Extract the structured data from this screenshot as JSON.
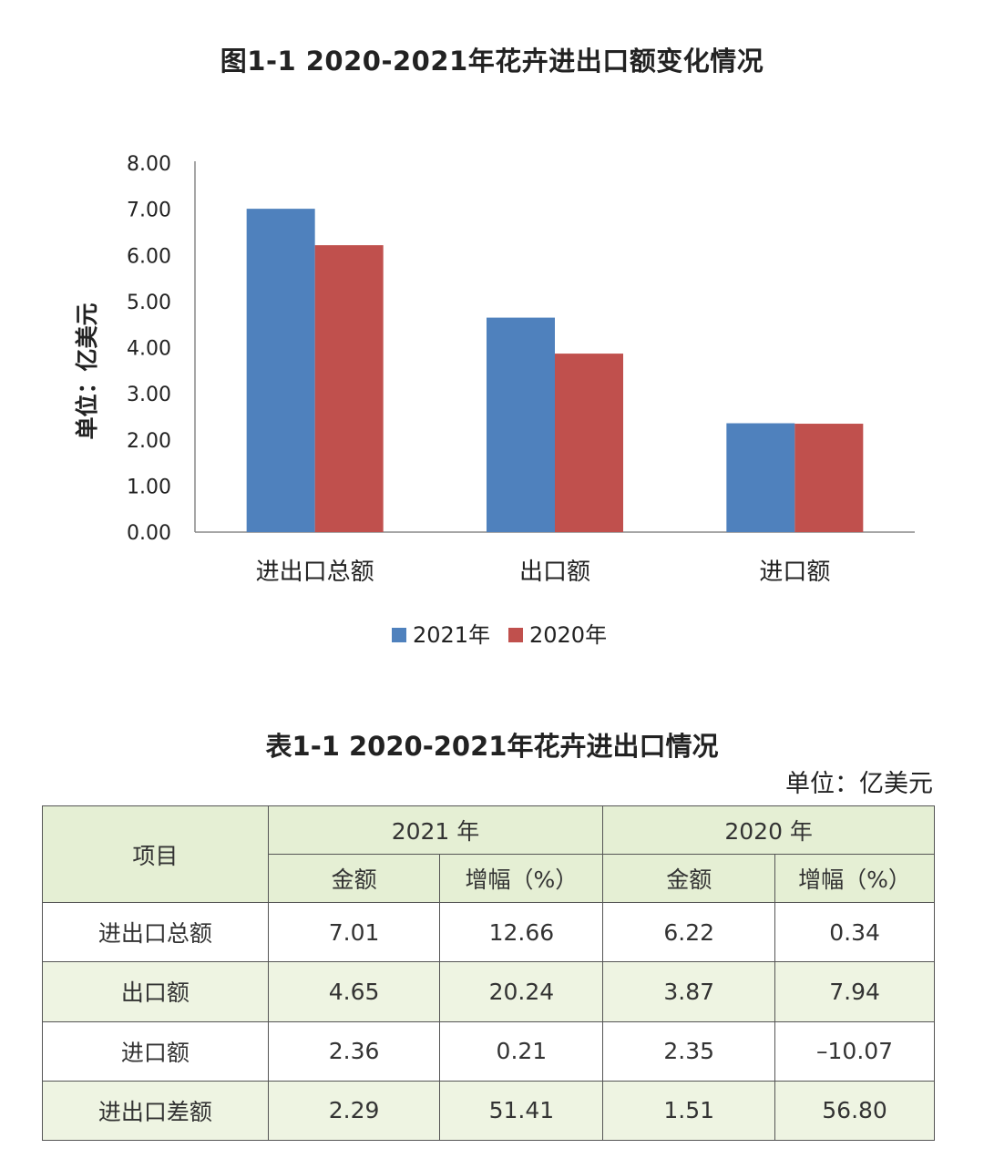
{
  "chart": {
    "title": "图1-1  2020-2021年花卉进出口额变化情况"
  },
  "chart_data": {
    "type": "bar",
    "categories": [
      "进出口总额",
      "出口额",
      "进口额"
    ],
    "series": [
      {
        "name": "2021年",
        "values": [
          7.01,
          4.65,
          2.36
        ],
        "color": "#4f81bd"
      },
      {
        "name": "2020年",
        "values": [
          6.22,
          3.87,
          2.35
        ],
        "color": "#c0504d"
      }
    ],
    "ylabel": "单位：亿美元",
    "ylim": [
      0,
      8
    ],
    "yticks": [
      "0.00",
      "1.00",
      "2.00",
      "3.00",
      "4.00",
      "5.00",
      "6.00",
      "7.00",
      "8.00"
    ],
    "grid": false,
    "legend": "bottom-center"
  },
  "table": {
    "title": "表1-1  2020-2021年花卉进出口情况",
    "unit": "单位：亿美元",
    "header_item": "项目",
    "years": [
      "2021 年",
      "2020 年"
    ],
    "sub_headers": [
      "金额",
      "增幅（%）",
      "金额",
      "增幅（%）"
    ],
    "rows": [
      {
        "item": "进出口总额",
        "cells": [
          "7.01",
          "12.66",
          "6.22",
          "0.34"
        ]
      },
      {
        "item": "出口额",
        "cells": [
          "4.65",
          "20.24",
          "3.87",
          "7.94"
        ]
      },
      {
        "item": "进口额",
        "cells": [
          "2.36",
          "0.21",
          "2.35",
          "–10.07"
        ]
      },
      {
        "item": "进出口差额",
        "cells": [
          "2.29",
          "51.41",
          "1.51",
          "56.80"
        ]
      }
    ],
    "header_bg": "#e5efd4",
    "alt_row_bg": "#eef4e2"
  }
}
